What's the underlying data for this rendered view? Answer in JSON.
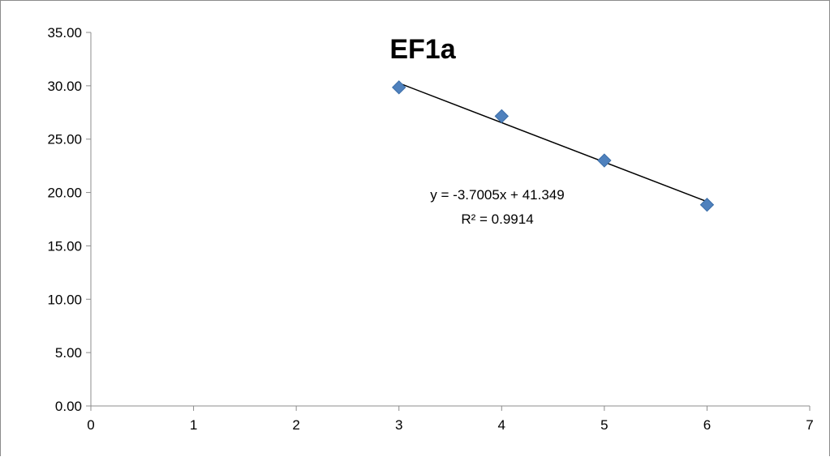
{
  "chart_data": {
    "type": "scatter",
    "title": "EF1a",
    "xlabel": "",
    "ylabel": "",
    "xlim": [
      0,
      7
    ],
    "ylim": [
      0,
      35
    ],
    "x_ticks": [
      "0",
      "1",
      "2",
      "3",
      "4",
      "5",
      "6",
      "7"
    ],
    "y_ticks": [
      "0.00",
      "5.00",
      "10.00",
      "15.00",
      "20.00",
      "25.00",
      "30.00",
      "35.00"
    ],
    "grid": false,
    "legend": "none",
    "series": [
      {
        "x": [
          3,
          4,
          5,
          6
        ],
        "y": [
          29.85,
          27.15,
          23.0,
          18.85
        ],
        "marker": "diamond",
        "color": "#4F81BD"
      }
    ],
    "trendline": {
      "type": "linear",
      "slope": -3.7005,
      "intercept": 41.349,
      "x_range": [
        3,
        6
      ],
      "color": "#000000",
      "equation": "y = -3.7005x + 41.349",
      "r_squared": "R² = 0.9914"
    }
  }
}
